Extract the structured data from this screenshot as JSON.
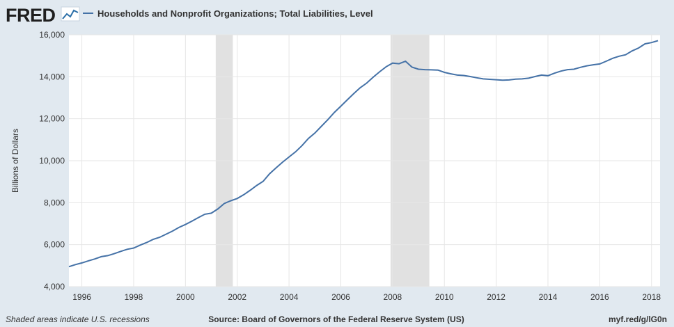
{
  "header": {
    "logo_text": "FRED",
    "logo_color": "#1f1f1f",
    "logo_accent_color": "#2b6fa8"
  },
  "footer": {
    "recession_note": "Shaded areas indicate U.S. recessions",
    "source": "Source: Board of Governors of the Federal Reserve System (US)",
    "url": "myf.red/g/lG0n"
  },
  "chart_data": {
    "type": "line",
    "title": "",
    "xlabel": "",
    "ylabel": "Billions of Dollars",
    "xlim": [
      1995.5,
      2018.33
    ],
    "ylim": [
      4000,
      16000
    ],
    "grid": true,
    "legend_position": "top-left",
    "line_color": "#4572a7",
    "recession_color": "#e1e1e1",
    "x_ticks": [
      1996,
      1998,
      2000,
      2002,
      2004,
      2006,
      2008,
      2010,
      2012,
      2014,
      2016,
      2018
    ],
    "y_ticks": [
      4000,
      6000,
      8000,
      10000,
      12000,
      14000,
      16000
    ],
    "y_tick_labels": [
      "4,000",
      "6,000",
      "8,000",
      "10,000",
      "12,000",
      "14,000",
      "16,000"
    ],
    "recessions": [
      {
        "start": 2001.17,
        "end": 2001.83
      },
      {
        "start": 2007.92,
        "end": 2009.42
      }
    ],
    "series": [
      {
        "name": "Households and Nonprofit Organizations; Total Liabilities, Level",
        "x": [
          1995.5,
          1995.75,
          1996.0,
          1996.25,
          1996.5,
          1996.75,
          1997.0,
          1997.25,
          1997.5,
          1997.75,
          1998.0,
          1998.25,
          1998.5,
          1998.75,
          1999.0,
          1999.25,
          1999.5,
          1999.75,
          2000.0,
          2000.25,
          2000.5,
          2000.75,
          2001.0,
          2001.25,
          2001.5,
          2001.75,
          2002.0,
          2002.25,
          2002.5,
          2002.75,
          2003.0,
          2003.25,
          2003.5,
          2003.75,
          2004.0,
          2004.25,
          2004.5,
          2004.75,
          2005.0,
          2005.25,
          2005.5,
          2005.75,
          2006.0,
          2006.25,
          2006.5,
          2006.75,
          2007.0,
          2007.25,
          2007.5,
          2007.75,
          2008.0,
          2008.25,
          2008.5,
          2008.75,
          2009.0,
          2009.25,
          2009.5,
          2009.75,
          2010.0,
          2010.25,
          2010.5,
          2010.75,
          2011.0,
          2011.25,
          2011.5,
          2011.75,
          2012.0,
          2012.25,
          2012.5,
          2012.75,
          2013.0,
          2013.25,
          2013.5,
          2013.75,
          2014.0,
          2014.25,
          2014.5,
          2014.75,
          2015.0,
          2015.25,
          2015.5,
          2015.75,
          2016.0,
          2016.25,
          2016.5,
          2016.75,
          2017.0,
          2017.25,
          2017.5,
          2017.75,
          2018.0,
          2018.25
        ],
        "values": [
          4950,
          5050,
          5130,
          5230,
          5320,
          5430,
          5480,
          5570,
          5680,
          5780,
          5840,
          5980,
          6100,
          6250,
          6350,
          6500,
          6650,
          6820,
          6960,
          7120,
          7290,
          7450,
          7500,
          7700,
          7960,
          8090,
          8200,
          8380,
          8590,
          8820,
          9020,
          9380,
          9660,
          9930,
          10180,
          10420,
          10720,
          11060,
          11320,
          11640,
          11960,
          12300,
          12600,
          12900,
          13200,
          13480,
          13700,
          13980,
          14240,
          14480,
          14650,
          14620,
          14740,
          14460,
          14360,
          14340,
          14330,
          14320,
          14210,
          14140,
          14080,
          14060,
          14010,
          13950,
          13900,
          13880,
          13860,
          13840,
          13850,
          13890,
          13900,
          13930,
          14010,
          14080,
          14050,
          14170,
          14270,
          14340,
          14360,
          14450,
          14520,
          14570,
          14610,
          14740,
          14880,
          14980,
          15050,
          15230,
          15370,
          15570,
          15630,
          15720
        ]
      }
    ]
  }
}
